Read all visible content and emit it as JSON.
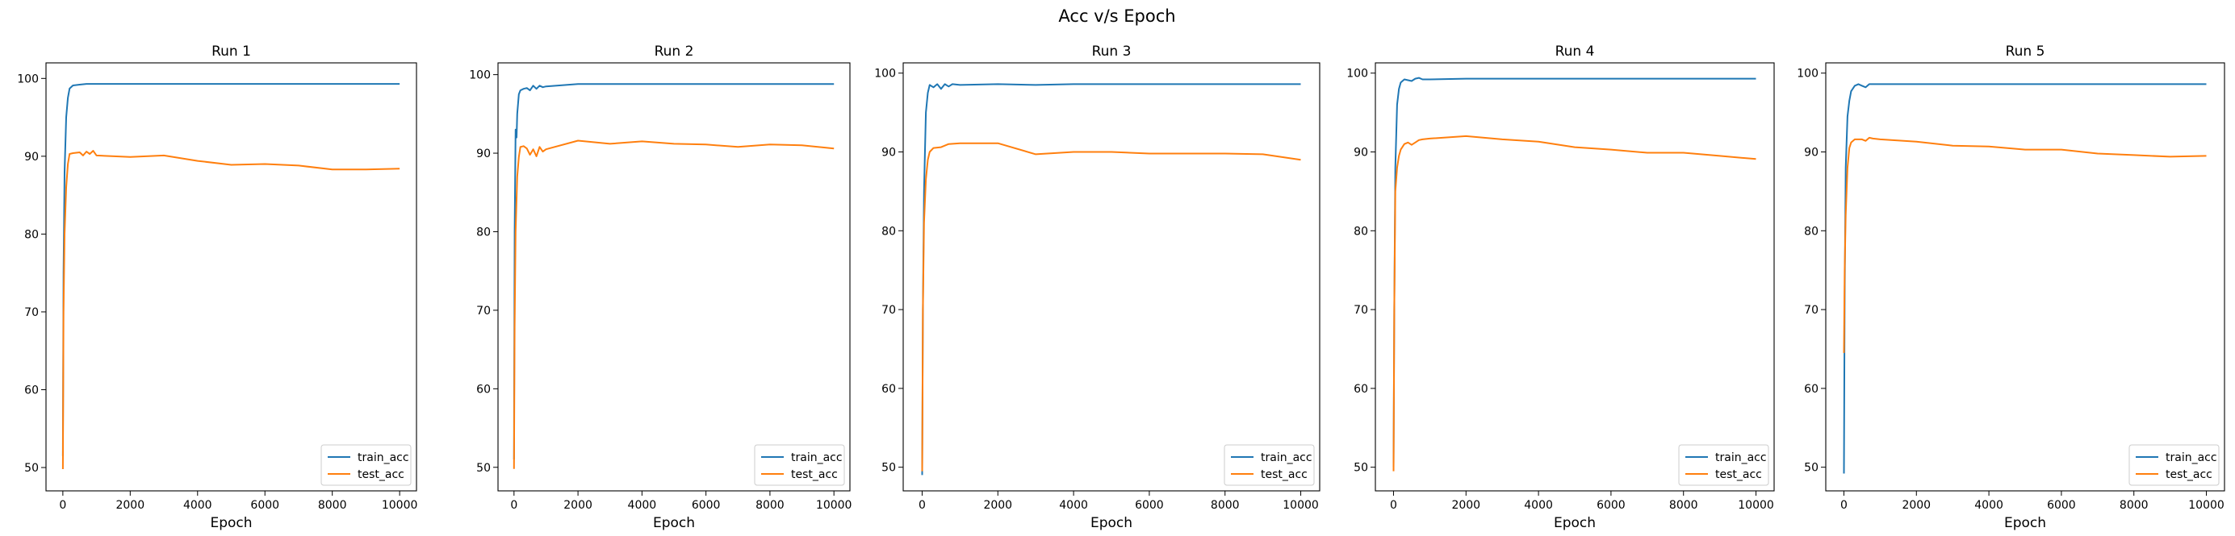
{
  "figure": {
    "suptitle": "Acc v/s Epoch"
  },
  "colors": {
    "train": "#1f77b4",
    "test": "#ff7f0e",
    "axis": "#000000"
  },
  "chart_data": [
    {
      "type": "line",
      "title": "Run 1",
      "xlabel": "Epoch",
      "ylabel": "",
      "xlim": [
        -500,
        10500
      ],
      "ylim": [
        47,
        102
      ],
      "xticks": [
        0,
        2000,
        4000,
        6000,
        8000,
        10000
      ],
      "yticks": [
        50,
        60,
        70,
        80,
        90,
        100
      ],
      "grid": false,
      "legend": "lower right",
      "series": [
        {
          "name": "train_acc",
          "color": "#1f77b4",
          "x": [
            0,
            20,
            50,
            100,
            150,
            200,
            300,
            500,
            700,
            1000,
            2000,
            4000,
            6000,
            8000,
            10000
          ],
          "y": [
            51.5,
            75,
            88,
            95,
            97.5,
            98.7,
            99.1,
            99.2,
            99.3,
            99.3,
            99.3,
            99.3,
            99.3,
            99.3,
            99.3
          ]
        },
        {
          "name": "test_acc",
          "color": "#ff7f0e",
          "x": [
            0,
            20,
            50,
            100,
            150,
            200,
            300,
            500,
            600,
            700,
            800,
            900,
            1000,
            2000,
            3000,
            4000,
            5000,
            6000,
            7000,
            8000,
            9000,
            10000
          ],
          "y": [
            49.8,
            70,
            80,
            86,
            89,
            90.3,
            90.4,
            90.5,
            90.1,
            90.6,
            90.3,
            90.7,
            90.1,
            89.9,
            90.1,
            89.4,
            88.9,
            89.0,
            88.8,
            88.3,
            88.3,
            88.4
          ]
        }
      ]
    },
    {
      "type": "line",
      "title": "Run 2",
      "xlabel": "Epoch",
      "ylabel": "",
      "xlim": [
        -500,
        10500
      ],
      "ylim": [
        47,
        101.5
      ],
      "xticks": [
        0,
        2000,
        4000,
        6000,
        8000,
        10000
      ],
      "yticks": [
        50,
        60,
        70,
        80,
        90,
        100
      ],
      "grid": false,
      "legend": "lower right",
      "series": [
        {
          "name": "train_acc",
          "color": "#1f77b4",
          "x": [
            0,
            20,
            50,
            80,
            100,
            150,
            200,
            300,
            400,
            500,
            600,
            700,
            800,
            900,
            1000,
            2000,
            4000,
            6000,
            8000,
            10000
          ],
          "y": [
            51,
            80,
            93,
            92,
            95,
            97.5,
            98.0,
            98.2,
            98.3,
            98.0,
            98.6,
            98.2,
            98.6,
            98.4,
            98.5,
            98.8,
            98.8,
            98.8,
            98.8,
            98.8
          ]
        },
        {
          "name": "test_acc",
          "color": "#ff7f0e",
          "x": [
            0,
            20,
            50,
            100,
            150,
            200,
            300,
            400,
            500,
            600,
            700,
            800,
            900,
            1000,
            2000,
            3000,
            4000,
            5000,
            6000,
            7000,
            8000,
            9000,
            10000
          ],
          "y": [
            49.8,
            68,
            80,
            87,
            89.5,
            90.8,
            90.9,
            90.6,
            89.8,
            90.5,
            89.6,
            90.8,
            90.2,
            90.5,
            91.6,
            91.2,
            91.5,
            91.2,
            91.1,
            90.8,
            91.1,
            91.0,
            90.6
          ]
        }
      ]
    },
    {
      "type": "line",
      "title": "Run 3",
      "xlabel": "Epoch",
      "ylabel": "",
      "xlim": [
        -500,
        10500
      ],
      "ylim": [
        47,
        101.3
      ],
      "xticks": [
        0,
        2000,
        4000,
        6000,
        8000,
        10000
      ],
      "yticks": [
        50,
        60,
        70,
        80,
        90,
        100
      ],
      "grid": false,
      "legend": "lower right",
      "series": [
        {
          "name": "train_acc",
          "color": "#1f77b4",
          "x": [
            0,
            20,
            50,
            100,
            150,
            200,
            300,
            400,
            500,
            600,
            700,
            800,
            1000,
            2000,
            3000,
            4000,
            6000,
            8000,
            10000
          ],
          "y": [
            49,
            70,
            85,
            95,
            97.5,
            98.5,
            98.2,
            98.6,
            98.0,
            98.6,
            98.3,
            98.6,
            98.5,
            98.6,
            98.5,
            98.6,
            98.6,
            98.6,
            98.6
          ]
        },
        {
          "name": "test_acc",
          "color": "#ff7f0e",
          "x": [
            0,
            20,
            50,
            100,
            150,
            200,
            300,
            500,
            700,
            1000,
            2000,
            3000,
            4000,
            5000,
            6000,
            7000,
            8000,
            9000,
            10000
          ],
          "y": [
            49.5,
            70,
            81,
            86.5,
            89,
            90.0,
            90.5,
            90.6,
            91.0,
            91.1,
            91.1,
            89.7,
            90.0,
            90.0,
            89.8,
            89.8,
            89.8,
            89.7,
            89.0
          ]
        }
      ]
    },
    {
      "type": "line",
      "title": "Run 4",
      "xlabel": "Epoch",
      "ylabel": "",
      "xlim": [
        -500,
        10500
      ],
      "ylim": [
        47,
        101.3
      ],
      "xticks": [
        0,
        2000,
        4000,
        6000,
        8000,
        10000
      ],
      "yticks": [
        50,
        60,
        70,
        80,
        90,
        100
      ],
      "grid": false,
      "legend": "lower right",
      "series": [
        {
          "name": "train_acc",
          "color": "#1f77b4",
          "x": [
            0,
            20,
            50,
            100,
            150,
            200,
            300,
            500,
            600,
            700,
            800,
            1000,
            2000,
            4000,
            6000,
            8000,
            10000
          ],
          "y": [
            50,
            70,
            88,
            96,
            98,
            98.8,
            99.2,
            99.0,
            99.3,
            99.4,
            99.2,
            99.2,
            99.3,
            99.3,
            99.3,
            99.3,
            99.3
          ]
        },
        {
          "name": "test_acc",
          "color": "#ff7f0e",
          "x": [
            0,
            20,
            50,
            100,
            150,
            200,
            300,
            400,
            500,
            600,
            700,
            800,
            1000,
            2000,
            3000,
            4000,
            5000,
            6000,
            7000,
            8000,
            9000,
            10000
          ],
          "y": [
            49.5,
            70,
            85,
            88,
            89.5,
            90.3,
            91.0,
            91.2,
            90.9,
            91.2,
            91.5,
            91.6,
            91.7,
            92.0,
            91.6,
            91.3,
            90.6,
            90.3,
            89.9,
            89.9,
            89.5,
            89.1
          ]
        }
      ]
    },
    {
      "type": "line",
      "title": "Run 5",
      "xlabel": "Epoch",
      "ylabel": "",
      "xlim": [
        -500,
        10500
      ],
      "ylim": [
        47,
        101.3
      ],
      "xticks": [
        0,
        2000,
        4000,
        6000,
        8000,
        10000
      ],
      "yticks": [
        50,
        60,
        70,
        80,
        90,
        100
      ],
      "grid": false,
      "legend": "lower right",
      "series": [
        {
          "name": "train_acc",
          "color": "#1f77b4",
          "x": [
            0,
            20,
            50,
            100,
            150,
            200,
            300,
            400,
            500,
            600,
            700,
            800,
            1000,
            2000,
            4000,
            6000,
            8000,
            10000
          ],
          "y": [
            49.2,
            72,
            88,
            94.5,
            96.5,
            97.7,
            98.4,
            98.6,
            98.4,
            98.2,
            98.6,
            98.6,
            98.6,
            98.6,
            98.6,
            98.6,
            98.6,
            98.6
          ]
        },
        {
          "name": "test_acc",
          "color": "#ff7f0e",
          "x": [
            0,
            20,
            50,
            100,
            150,
            200,
            300,
            500,
            600,
            700,
            800,
            1000,
            2000,
            3000,
            4000,
            5000,
            6000,
            7000,
            8000,
            9000,
            10000
          ],
          "y": [
            64.5,
            75,
            82,
            88,
            90.5,
            91.2,
            91.6,
            91.6,
            91.4,
            91.8,
            91.7,
            91.6,
            91.3,
            90.8,
            90.7,
            90.3,
            90.3,
            89.8,
            89.6,
            89.4,
            89.5
          ]
        }
      ]
    }
  ]
}
